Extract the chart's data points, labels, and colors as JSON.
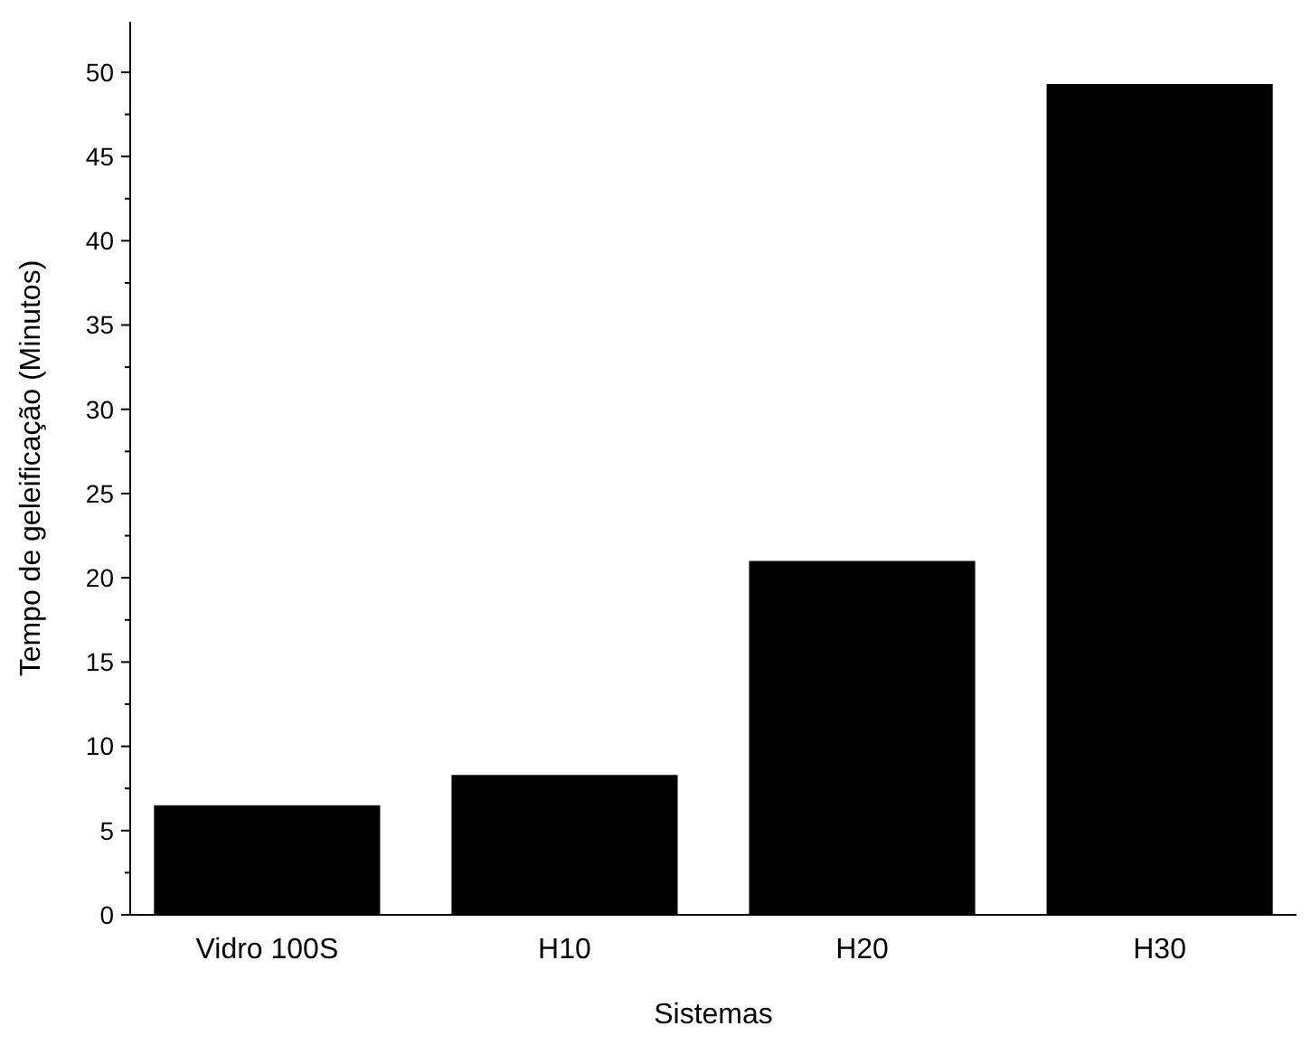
{
  "chart_data": {
    "type": "bar",
    "xlabel": "Sistemas",
    "ylabel": "Tempo de geleificação (Minutos)",
    "categories": [
      "Vidro 100S",
      "H10",
      "H20",
      "H30"
    ],
    "values": [
      6.5,
      8.3,
      21,
      49.3
    ],
    "color": "#000000",
    "ylim": [
      0,
      53
    ],
    "yticks": [
      0,
      5,
      10,
      15,
      20,
      25,
      30,
      35,
      40,
      45,
      50
    ],
    "grid": false
  }
}
